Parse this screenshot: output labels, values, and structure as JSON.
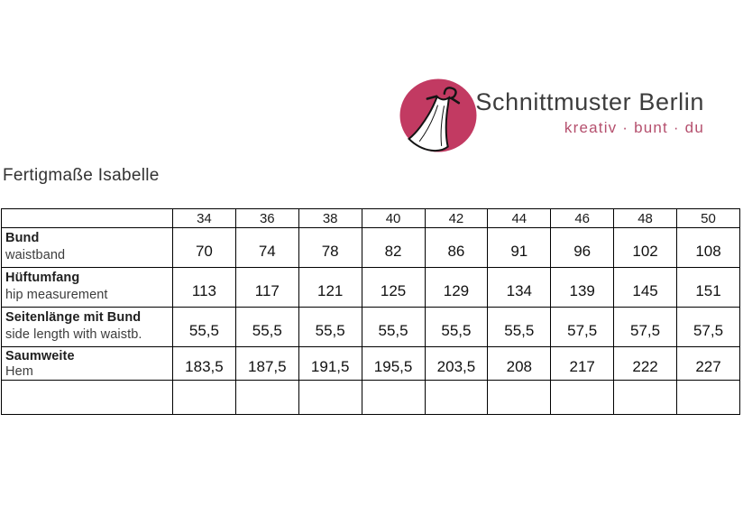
{
  "logo": {
    "brand": "Schnittmuster Berlin",
    "tagline": "kreativ · bunt · du",
    "colors": {
      "circle": "#c23a62",
      "tagline_text": "#b5506e",
      "brand_text": "#3d3d3d",
      "dress_fill": "#ffffff",
      "outline": "#141414"
    }
  },
  "title": "Fertigmaße Isabelle",
  "table": {
    "sizes": [
      "34",
      "36",
      "38",
      "40",
      "42",
      "44",
      "46",
      "48",
      "50"
    ],
    "rows": [
      {
        "label_de": "Bund",
        "label_en": "waistband",
        "values": [
          "70",
          "74",
          "78",
          "82",
          "86",
          "91",
          "96",
          "102",
          "108"
        ]
      },
      {
        "label_de": "Hüftumfang",
        "label_en": "hip measurement",
        "values": [
          "113",
          "117",
          "121",
          "125",
          "129",
          "134",
          "139",
          "145",
          "151"
        ]
      },
      {
        "label_de": "Seitenlänge mit Bund",
        "label_en": "side length with waistb.",
        "values": [
          "55,5",
          "55,5",
          "55,5",
          "55,5",
          "55,5",
          "55,5",
          "57,5",
          "57,5",
          "57,5"
        ]
      },
      {
        "label_de": "Saumweite",
        "label_en": "Hem",
        "values": [
          "183,5",
          "187,5",
          "191,5",
          "195,5",
          "203,5",
          "208",
          "217",
          "222",
          "227"
        ]
      },
      {
        "label_de": "",
        "label_en": "",
        "values": [
          "",
          "",
          "",
          "",
          "",
          "",
          "",
          "",
          ""
        ]
      }
    ]
  }
}
